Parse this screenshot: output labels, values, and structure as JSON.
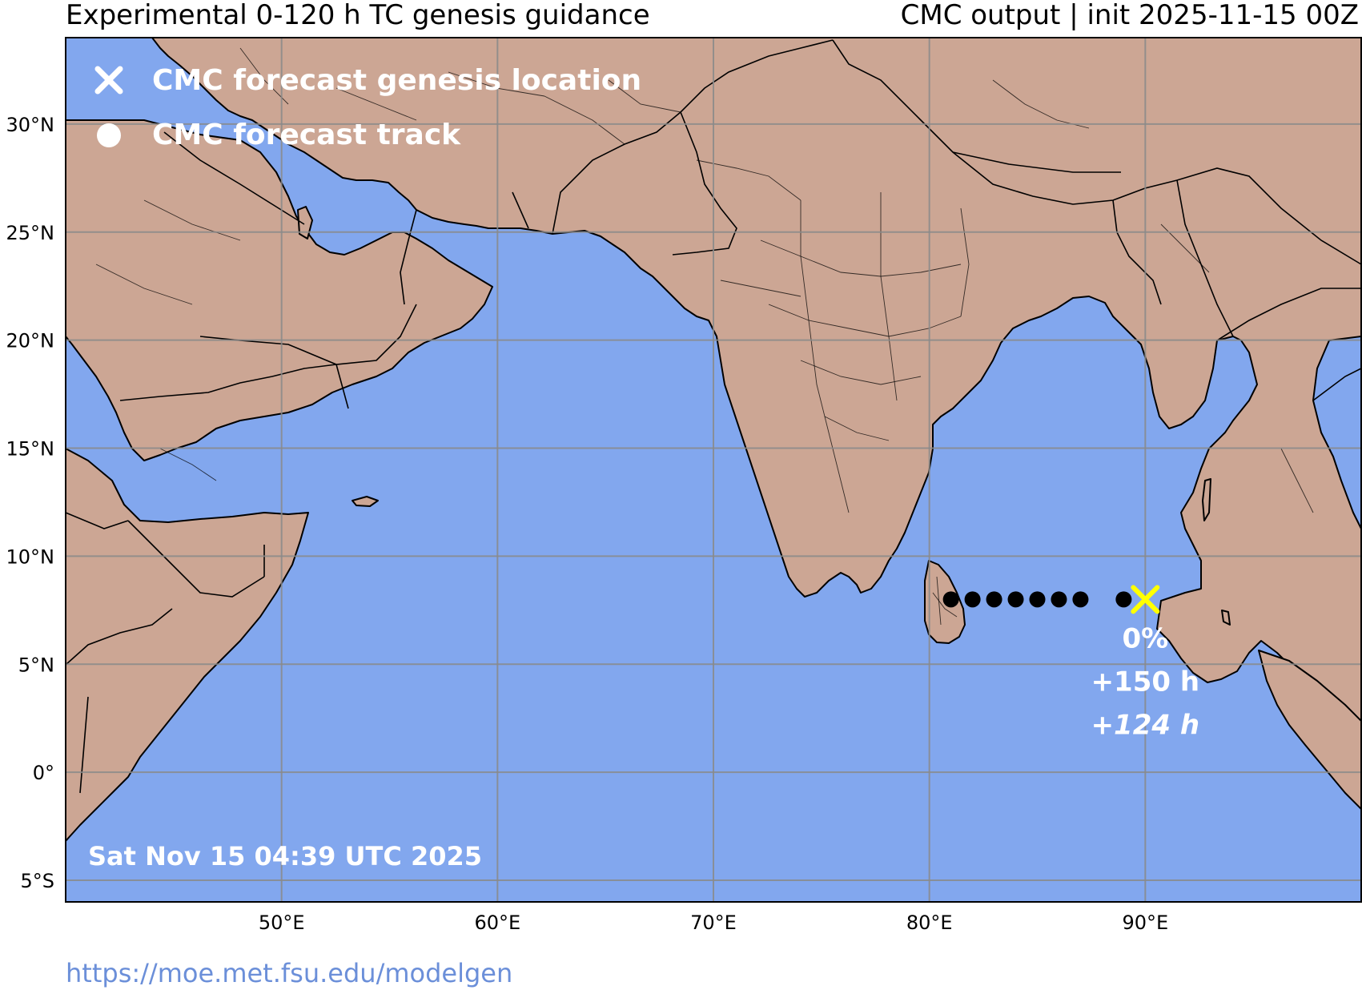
{
  "header": {
    "title_left": "Experimental 0-120 h TC genesis guidance",
    "title_right": "CMC output | init 2025-11-15 00Z"
  },
  "legend": {
    "genesis_label": "CMC forecast genesis location",
    "track_label": "CMC forecast track",
    "genesis_icon": "x-marker-icon",
    "track_icon": "dot-marker-icon"
  },
  "map": {
    "extent": {
      "lon_min": 40,
      "lon_max": 100,
      "lat_min": -6,
      "lat_max": 34
    },
    "lon_ticks": [
      {
        "value": 50,
        "label": "50°E"
      },
      {
        "value": 60,
        "label": "60°E"
      },
      {
        "value": 70,
        "label": "70°E"
      },
      {
        "value": 80,
        "label": "80°E"
      },
      {
        "value": 90,
        "label": "90°E"
      }
    ],
    "lat_ticks": [
      {
        "value": 30,
        "label": "30°N"
      },
      {
        "value": 25,
        "label": "25°N"
      },
      {
        "value": 20,
        "label": "20°N"
      },
      {
        "value": 15,
        "label": "15°N"
      },
      {
        "value": 10,
        "label": "10°N"
      },
      {
        "value": 5,
        "label": "5°N"
      },
      {
        "value": 0,
        "label": "0°"
      },
      {
        "value": -5,
        "label": "5°S"
      }
    ],
    "colors": {
      "ocean": "#82a7ee",
      "land": "#cca694",
      "track": "#000000",
      "genesis": "#ffff00",
      "annotation": "#ffffff"
    },
    "track_points": [
      {
        "lon": 81.0,
        "lat": 8.0
      },
      {
        "lon": 82.0,
        "lat": 8.0
      },
      {
        "lon": 83.0,
        "lat": 8.0
      },
      {
        "lon": 84.0,
        "lat": 8.0
      },
      {
        "lon": 85.0,
        "lat": 8.0
      },
      {
        "lon": 86.0,
        "lat": 8.0
      },
      {
        "lon": 87.0,
        "lat": 8.0
      },
      {
        "lon": 89.0,
        "lat": 8.0
      }
    ],
    "genesis": {
      "lon": 90.0,
      "lat": 8.0,
      "probability": "0%",
      "lead_time": "+150 h",
      "lead_time_alt": "+124 h"
    }
  },
  "footer": {
    "timestamp": "Sat Nov 15 04:39 UTC 2025",
    "url": "https://moe.met.fsu.edu/modelgen"
  }
}
